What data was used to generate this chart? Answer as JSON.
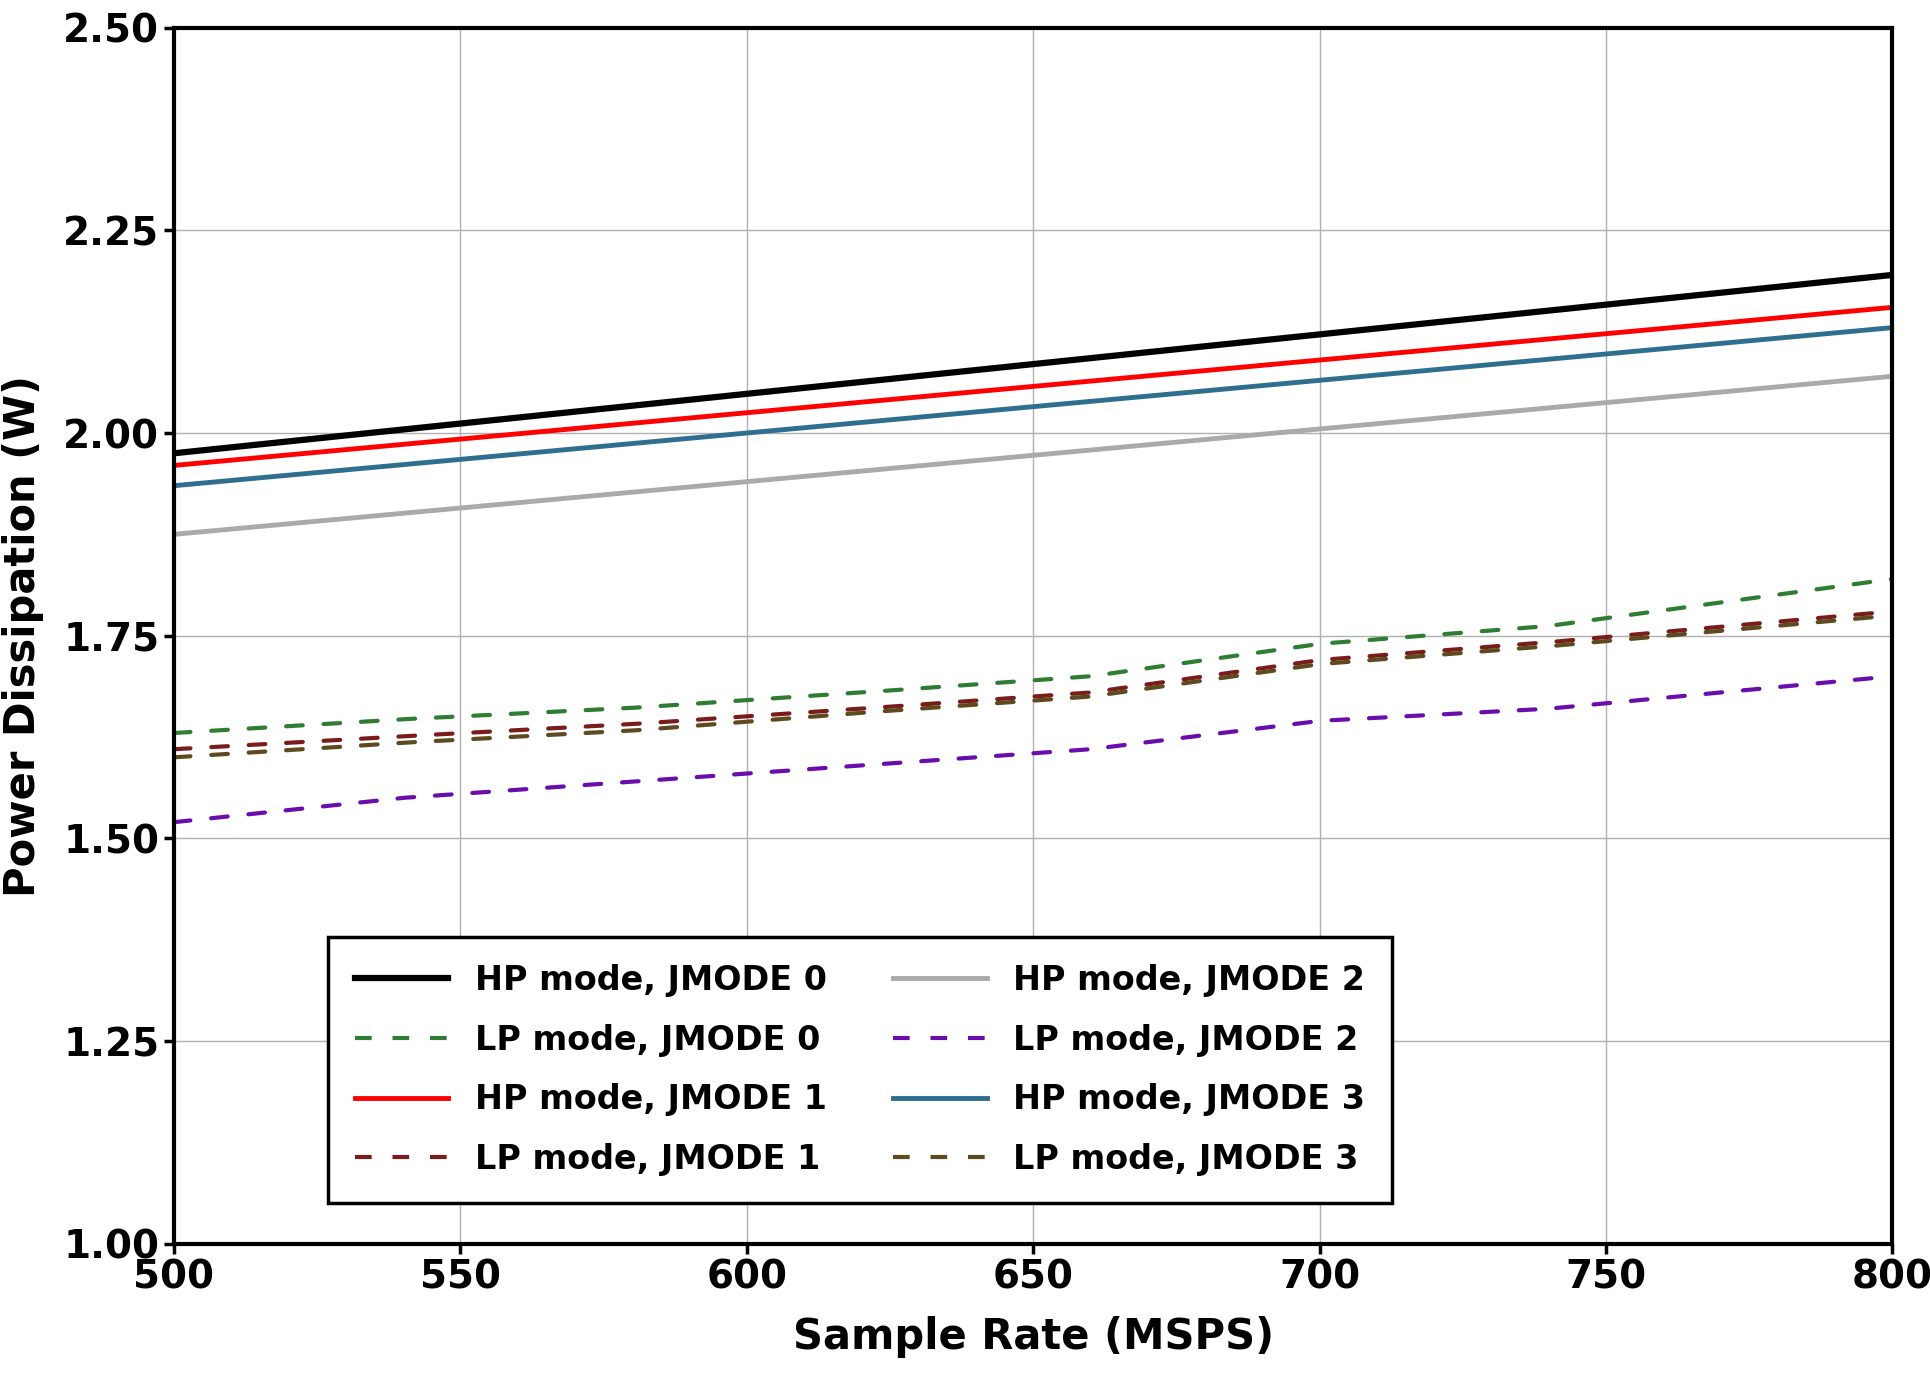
{
  "x_start": 500,
  "x_end": 800,
  "x_label": "Sample Rate (MSPS)",
  "y_label": "Power Dissipation (W)",
  "xlim": [
    500,
    800
  ],
  "ylim": [
    1.0,
    2.5
  ],
  "yticks": [
    1.0,
    1.25,
    1.5,
    1.75,
    2.0,
    2.25,
    2.5
  ],
  "xticks": [
    500,
    550,
    600,
    650,
    700,
    750,
    800
  ],
  "hp_lines": [
    {
      "label": "HP mode, JMODE 0",
      "color": "#000000",
      "linewidth": 4.5,
      "x": [
        500,
        800
      ],
      "y": [
        1.975,
        2.195
      ]
    },
    {
      "label": "HP mode, JMODE 1",
      "color": "#ff0000",
      "linewidth": 3.5,
      "x": [
        500,
        800
      ],
      "y": [
        1.96,
        2.155
      ]
    },
    {
      "label": "HP mode, JMODE 2",
      "color": "#aaaaaa",
      "linewidth": 3.5,
      "x": [
        500,
        800
      ],
      "y": [
        1.875,
        2.07
      ]
    },
    {
      "label": "HP mode, JMODE 3",
      "color": "#2e6e8e",
      "linewidth": 3.5,
      "x": [
        500,
        800
      ],
      "y": [
        1.935,
        2.13
      ]
    }
  ],
  "lp_lines": [
    {
      "label": "LP mode, JMODE 0",
      "color": "#2e7d32",
      "linewidth": 3.0,
      "x": [
        500,
        540,
        580,
        620,
        660,
        700,
        740,
        800
      ],
      "y": [
        1.63,
        1.647,
        1.661,
        1.68,
        1.7,
        1.74,
        1.762,
        1.82
      ]
    },
    {
      "label": "LP mode, JMODE 1",
      "color": "#7b1c1c",
      "linewidth": 3.0,
      "x": [
        500,
        540,
        580,
        620,
        660,
        700,
        740,
        800
      ],
      "y": [
        1.61,
        1.626,
        1.641,
        1.66,
        1.68,
        1.72,
        1.742,
        1.78
      ]
    },
    {
      "label": "LP mode, JMODE 2",
      "color": "#6a0dad",
      "linewidth": 3.0,
      "x": [
        500,
        520,
        540,
        580,
        620,
        660,
        700,
        740,
        800
      ],
      "y": [
        1.52,
        1.535,
        1.55,
        1.57,
        1.59,
        1.61,
        1.645,
        1.66,
        1.7
      ]
    },
    {
      "label": "LP mode, JMODE 3",
      "color": "#5d4a1e",
      "linewidth": 3.0,
      "x": [
        500,
        540,
        580,
        620,
        660,
        700,
        740,
        800
      ],
      "y": [
        1.6,
        1.618,
        1.633,
        1.655,
        1.675,
        1.715,
        1.737,
        1.775
      ]
    }
  ],
  "background_color": "#ffffff",
  "label_fontsize": 30,
  "tick_fontsize": 28,
  "legend_fontsize": 24
}
